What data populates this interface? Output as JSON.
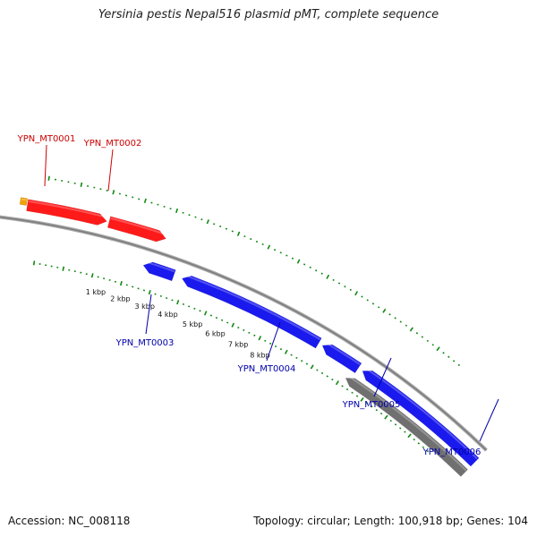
{
  "title": "Yersinia pestis Nepal516 plasmid pMT, complete sequence",
  "accession_label": "Accession: NC_008118",
  "summary_label": "Topology: circular; Length: 100,918 bp; Genes: 104",
  "colors": {
    "forward_gene": "#ff1a1a",
    "reverse_gene": "#1a1aee",
    "other_feature": "#707070",
    "forward_label": "#cc0000",
    "reverse_label": "#0000aa",
    "tick": "#118811",
    "backbone": "#8a8a8a",
    "orange_feature": "#f0a000"
  },
  "chart_data": {
    "type": "circular-plasmid-map",
    "topology": "circular",
    "length_bp": 100918,
    "gene_count": 104,
    "tick_labels": [
      "1 kbp",
      "2 kbp",
      "3 kbp",
      "4 kbp",
      "5 kbp",
      "6 kbp",
      "7 kbp",
      "8 kbp"
    ],
    "genes": [
      {
        "name": "YPN_MT0001",
        "strand": "forward"
      },
      {
        "name": "YPN_MT0002",
        "strand": "forward"
      },
      {
        "name": "YPN_MT0003",
        "strand": "reverse"
      },
      {
        "name": "YPN_MT0004",
        "strand": "reverse"
      },
      {
        "name": "YPN_MT0005",
        "strand": "reverse"
      },
      {
        "name": "YPN_MT0006",
        "strand": "reverse"
      }
    ]
  }
}
